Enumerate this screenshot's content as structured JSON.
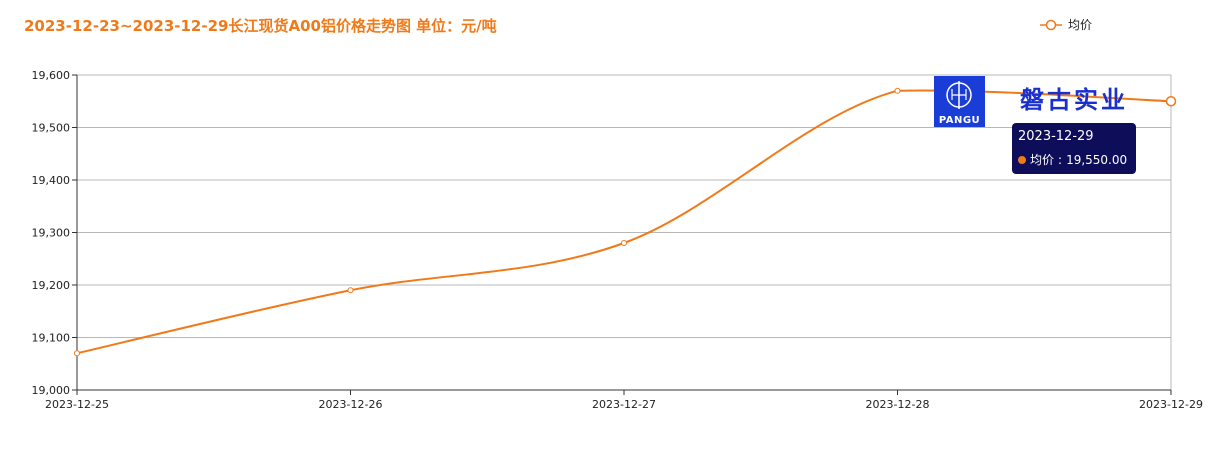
{
  "title": "2023-12-23~2023-12-29长江现货A00铝价格走势图 单位：元/吨",
  "legend": {
    "label": "均价"
  },
  "colors": {
    "series": "#f07a1a",
    "title": "#f07a1a",
    "tooltip_bg": "#0d0d59",
    "logo_bg": "#1a3dd8",
    "brand": "#1a2fd0"
  },
  "logo": {
    "text": "PANGU",
    "brand_text": "磐古实业"
  },
  "tooltip": {
    "date": "2023-12-29",
    "series_label": "均价",
    "value_text": "19,550.00"
  },
  "chart_data": {
    "type": "line",
    "title": "2023-12-23~2023-12-29长江现货A00铝价格走势图 单位：元/吨",
    "categories": [
      "2023-12-25",
      "2023-12-26",
      "2023-12-27",
      "2023-12-28",
      "2023-12-29"
    ],
    "series": [
      {
        "name": "均价",
        "values": [
          19070,
          19190,
          19280,
          19570,
          19550
        ]
      }
    ],
    "ylim": [
      19000,
      19600
    ],
    "yticks": [
      19000,
      19100,
      19200,
      19300,
      19400,
      19500,
      19600
    ],
    "ytick_labels": [
      "19,000",
      "19,100",
      "19,200",
      "19,300",
      "19,400",
      "19,500",
      "19,600"
    ],
    "grid": true,
    "legend_position": "top-right"
  }
}
